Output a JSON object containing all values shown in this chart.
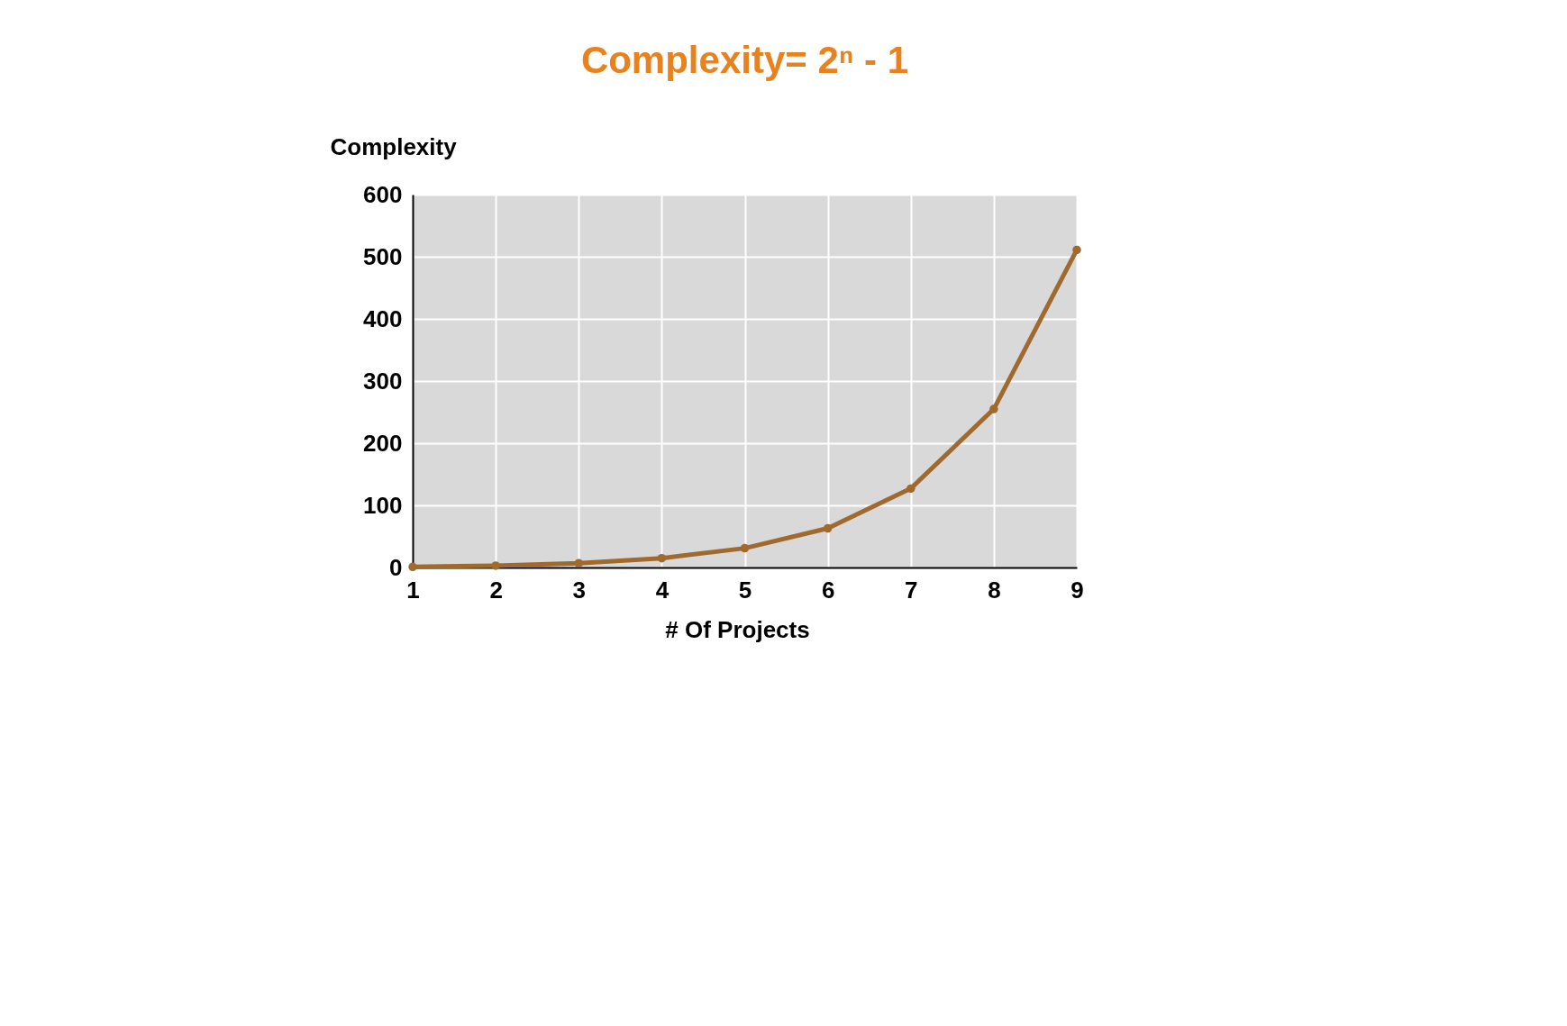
{
  "chart_data": {
    "type": "line",
    "title": "Complexity= 2ⁿ - 1",
    "xlabel": "# Of Projects",
    "ylabel": "Complexity",
    "x": [
      1,
      2,
      3,
      4,
      5,
      6,
      7,
      8,
      9
    ],
    "series": [
      {
        "color": "#a0692e",
        "values": [
          1,
          3,
          7,
          15,
          31,
          63,
          127,
          255,
          511
        ]
      }
    ],
    "xlim": [
      1,
      9
    ],
    "xticks": [
      1,
      2,
      3,
      4,
      5,
      6,
      7,
      8,
      9
    ],
    "ylim": [
      0,
      600
    ],
    "yticks": [
      0,
      100,
      200,
      300,
      400,
      500,
      600
    ],
    "grid": true,
    "marker": "circle",
    "line_style": "solid"
  }
}
